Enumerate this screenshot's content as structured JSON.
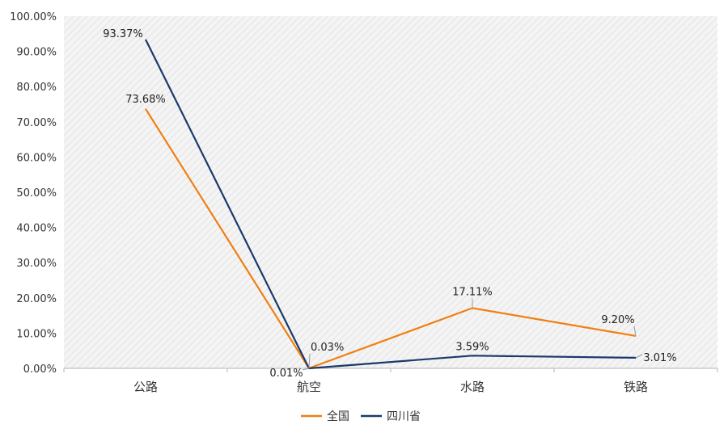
{
  "chart_data": {
    "type": "line",
    "categories": [
      "公路",
      "航空",
      "水路",
      "铁路"
    ],
    "series": [
      {
        "name": "全国",
        "color": "#F07F12",
        "values": [
          73.68,
          0.03,
          17.11,
          9.2
        ],
        "labels": [
          "73.68%",
          "0.03%",
          "17.11%",
          "9.20%"
        ]
      },
      {
        "name": "四川省",
        "color": "#1B3A6B",
        "values": [
          93.37,
          0.01,
          3.59,
          3.01
        ],
        "labels": [
          "93.37%",
          "0.01%",
          "3.59%",
          "3.01%"
        ]
      }
    ],
    "yaxis": {
      "min": 0,
      "max": 100,
      "step": 10,
      "tick_labels": [
        "0.00%",
        "10.00%",
        "20.00%",
        "30.00%",
        "40.00%",
        "50.00%",
        "60.00%",
        "70.00%",
        "80.00%",
        "90.00%",
        "100.00%"
      ]
    },
    "legend_position": "bottom-center",
    "grid": false,
    "plot_background": "hatched-light-gray",
    "title": "",
    "xlabel": "",
    "ylabel": ""
  }
}
